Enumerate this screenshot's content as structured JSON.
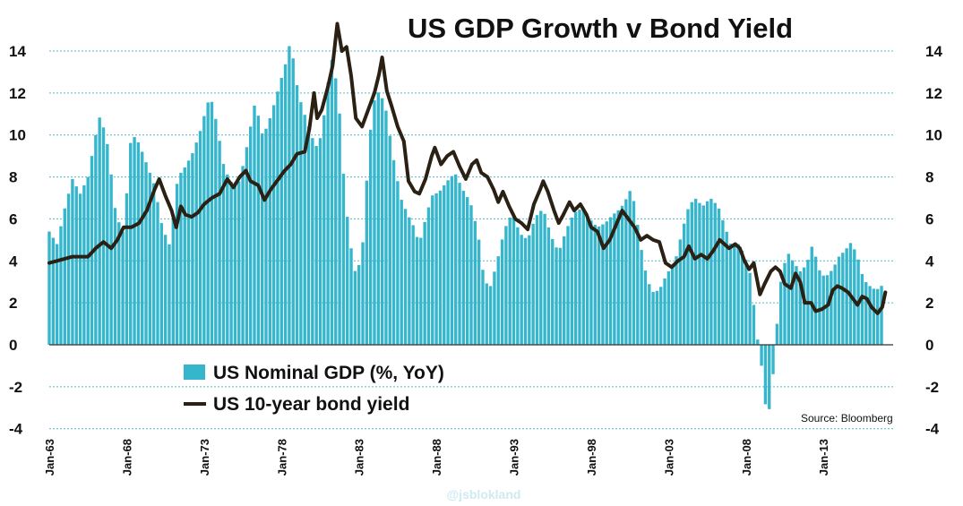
{
  "colors": {
    "bars": "#35b6cc",
    "bar_edge": "#1e9fb6",
    "line": "#2a2013",
    "grid": "#55b8c8",
    "axis": "#333333"
  },
  "chart_data": {
    "type": "bar+line",
    "title": "US GDP Growth v Bond Yield",
    "source": "Source: Bloomberg",
    "watermark": "@jsblokland",
    "x_range": [
      1963.0,
      2017.5
    ],
    "ylim": [
      -4,
      15.3
    ],
    "y_ticks": [
      14,
      12,
      10,
      8,
      6,
      4,
      2,
      0,
      -2,
      -4
    ],
    "y_ticks_left": [
      "14",
      "12",
      "10",
      "8",
      "6",
      "4",
      "2",
      "0",
      "-2",
      "-4"
    ],
    "y_ticks_right": [
      "14",
      "12",
      "10",
      "8",
      "6",
      "4",
      "2",
      "0",
      "-2",
      "-4"
    ],
    "x_ticks": [
      {
        "label": "Jan-63",
        "t": 1963.0
      },
      {
        "label": "Jan-68",
        "t": 1968.0
      },
      {
        "label": "Jan-73",
        "t": 1973.0
      },
      {
        "label": "Jan-78",
        "t": 1978.0
      },
      {
        "label": "Jan-83",
        "t": 1983.0
      },
      {
        "label": "Jan-88",
        "t": 1988.0
      },
      {
        "label": "Jan-93",
        "t": 1993.0
      },
      {
        "label": "Jan-98",
        "t": 1998.0
      },
      {
        "label": "Jan-03",
        "t": 2003.0
      },
      {
        "label": "Jan-08",
        "t": 2008.0
      },
      {
        "label": "Jan-13",
        "t": 2013.0
      }
    ],
    "legend": {
      "position": "bottom-left",
      "entries": [
        "US Nominal GDP (%, YoY)",
        "US 10-year bond yield"
      ]
    },
    "gdp_anchors": [
      [
        1963.0,
        5.4
      ],
      [
        1963.5,
        4.8
      ],
      [
        1964.0,
        6.5
      ],
      [
        1964.5,
        7.9
      ],
      [
        1965.0,
        7.2
      ],
      [
        1965.5,
        8.0
      ],
      [
        1966.0,
        10.0
      ],
      [
        1966.3,
        11.0
      ],
      [
        1966.8,
        9.4
      ],
      [
        1967.3,
        6.2
      ],
      [
        1967.8,
        5.3
      ],
      [
        1968.3,
        10.1
      ],
      [
        1968.8,
        9.6
      ],
      [
        1969.3,
        8.6
      ],
      [
        1969.8,
        7.6
      ],
      [
        1970.3,
        5.6
      ],
      [
        1970.8,
        4.7
      ],
      [
        1971.3,
        8.0
      ],
      [
        1971.8,
        8.5
      ],
      [
        1972.3,
        9.2
      ],
      [
        1972.8,
        10.3
      ],
      [
        1973.1,
        11.2
      ],
      [
        1973.4,
        11.9
      ],
      [
        1973.8,
        10.6
      ],
      [
        1974.3,
        8.4
      ],
      [
        1974.8,
        7.7
      ],
      [
        1975.3,
        7.8
      ],
      [
        1975.8,
        9.6
      ],
      [
        1976.3,
        11.6
      ],
      [
        1976.8,
        9.9
      ],
      [
        1977.3,
        10.9
      ],
      [
        1977.8,
        12.2
      ],
      [
        1978.3,
        13.5
      ],
      [
        1978.6,
        14.6
      ],
      [
        1978.9,
        12.7
      ],
      [
        1979.3,
        11.4
      ],
      [
        1979.8,
        10.3
      ],
      [
        1980.2,
        9.4
      ],
      [
        1980.6,
        10.0
      ],
      [
        1981.0,
        12.5
      ],
      [
        1981.3,
        13.8
      ],
      [
        1981.7,
        11.6
      ],
      [
        1982.1,
        7.0
      ],
      [
        1982.5,
        4.6
      ],
      [
        1982.8,
        3.3
      ],
      [
        1983.2,
        4.3
      ],
      [
        1983.6,
        9.0
      ],
      [
        1983.9,
        11.5
      ],
      [
        1984.3,
        12.1
      ],
      [
        1984.7,
        11.4
      ],
      [
        1985.2,
        9.0
      ],
      [
        1985.7,
        7.0
      ],
      [
        1986.1,
        6.3
      ],
      [
        1986.5,
        5.7
      ],
      [
        1986.9,
        4.8
      ],
      [
        1987.3,
        6.0
      ],
      [
        1987.7,
        7.1
      ],
      [
        1988.2,
        7.3
      ],
      [
        1988.7,
        7.8
      ],
      [
        1989.2,
        8.2
      ],
      [
        1989.7,
        7.4
      ],
      [
        1990.2,
        6.8
      ],
      [
        1990.7,
        5.3
      ],
      [
        1991.1,
        3.0
      ],
      [
        1991.5,
        2.8
      ],
      [
        1991.9,
        3.9
      ],
      [
        1992.4,
        5.5
      ],
      [
        1992.9,
        6.3
      ],
      [
        1993.4,
        5.3
      ],
      [
        1993.9,
        5.0
      ],
      [
        1994.4,
        6.1
      ],
      [
        1994.9,
        6.5
      ],
      [
        1995.4,
        5.2
      ],
      [
        1995.9,
        4.4
      ],
      [
        1996.4,
        5.5
      ],
      [
        1996.9,
        6.3
      ],
      [
        1997.4,
        6.5
      ],
      [
        1997.9,
        6.0
      ],
      [
        1998.4,
        5.6
      ],
      [
        1998.9,
        5.8
      ],
      [
        1999.4,
        6.2
      ],
      [
        1999.9,
        6.5
      ],
      [
        2000.3,
        7.0
      ],
      [
        2000.6,
        7.5
      ],
      [
        2000.9,
        6.2
      ],
      [
        2001.4,
        3.8
      ],
      [
        2001.9,
        2.5
      ],
      [
        2002.4,
        2.6
      ],
      [
        2002.9,
        3.4
      ],
      [
        2003.4,
        3.9
      ],
      [
        2003.9,
        5.5
      ],
      [
        2004.3,
        6.6
      ],
      [
        2004.7,
        7.0
      ],
      [
        2005.2,
        6.6
      ],
      [
        2005.7,
        7.0
      ],
      [
        2006.2,
        6.6
      ],
      [
        2006.7,
        5.5
      ],
      [
        2007.1,
        4.6
      ],
      [
        2007.5,
        4.8
      ],
      [
        2007.9,
        4.3
      ],
      [
        2008.3,
        3.3
      ],
      [
        2008.7,
        0.5
      ],
      [
        2009.0,
        -1.0
      ],
      [
        2009.3,
        -3.2
      ],
      [
        2009.6,
        -3.0
      ],
      [
        2009.9,
        0.2
      ],
      [
        2010.3,
        3.4
      ],
      [
        2010.7,
        4.4
      ],
      [
        2011.1,
        3.9
      ],
      [
        2011.5,
        3.5
      ],
      [
        2011.9,
        3.8
      ],
      [
        2012.3,
        4.8
      ],
      [
        2012.7,
        3.6
      ],
      [
        2013.1,
        3.2
      ],
      [
        2013.6,
        3.6
      ],
      [
        2014.0,
        4.2
      ],
      [
        2014.4,
        4.5
      ],
      [
        2014.8,
        4.9
      ],
      [
        2015.2,
        4.2
      ],
      [
        2015.6,
        3.1
      ],
      [
        2016.0,
        2.8
      ],
      [
        2016.4,
        2.6
      ],
      [
        2016.9,
        2.9
      ]
    ],
    "yield_anchors": [
      [
        1963.0,
        3.9
      ],
      [
        1963.5,
        4.0
      ],
      [
        1964.0,
        4.1
      ],
      [
        1964.5,
        4.2
      ],
      [
        1965.0,
        4.2
      ],
      [
        1965.5,
        4.2
      ],
      [
        1966.0,
        4.6
      ],
      [
        1966.5,
        4.9
      ],
      [
        1967.0,
        4.6
      ],
      [
        1967.4,
        5.0
      ],
      [
        1967.8,
        5.6
      ],
      [
        1968.3,
        5.6
      ],
      [
        1968.8,
        5.8
      ],
      [
        1969.3,
        6.4
      ],
      [
        1969.8,
        7.4
      ],
      [
        1970.1,
        7.9
      ],
      [
        1970.5,
        7.1
      ],
      [
        1970.9,
        6.4
      ],
      [
        1971.2,
        5.6
      ],
      [
        1971.5,
        6.6
      ],
      [
        1971.8,
        6.2
      ],
      [
        1972.2,
        6.1
      ],
      [
        1972.6,
        6.3
      ],
      [
        1973.0,
        6.7
      ],
      [
        1973.5,
        7.0
      ],
      [
        1974.0,
        7.2
      ],
      [
        1974.5,
        7.9
      ],
      [
        1974.9,
        7.5
      ],
      [
        1975.3,
        8.0
      ],
      [
        1975.7,
        8.3
      ],
      [
        1976.0,
        7.8
      ],
      [
        1976.5,
        7.6
      ],
      [
        1976.9,
        6.9
      ],
      [
        1977.3,
        7.4
      ],
      [
        1977.8,
        7.9
      ],
      [
        1978.2,
        8.3
      ],
      [
        1978.6,
        8.6
      ],
      [
        1979.0,
        9.1
      ],
      [
        1979.5,
        9.2
      ],
      [
        1979.8,
        10.3
      ],
      [
        1980.1,
        12.0
      ],
      [
        1980.3,
        10.8
      ],
      [
        1980.6,
        11.2
      ],
      [
        1981.0,
        12.3
      ],
      [
        1981.3,
        13.3
      ],
      [
        1981.6,
        15.3
      ],
      [
        1981.9,
        14.0
      ],
      [
        1982.2,
        14.2
      ],
      [
        1982.5,
        12.8
      ],
      [
        1982.8,
        10.8
      ],
      [
        1983.2,
        10.4
      ],
      [
        1983.6,
        11.2
      ],
      [
        1984.0,
        12.0
      ],
      [
        1984.3,
        12.9
      ],
      [
        1984.5,
        13.7
      ],
      [
        1984.8,
        12.1
      ],
      [
        1985.1,
        11.4
      ],
      [
        1985.5,
        10.4
      ],
      [
        1985.9,
        9.7
      ],
      [
        1986.2,
        7.8
      ],
      [
        1986.6,
        7.3
      ],
      [
        1986.9,
        7.2
      ],
      [
        1987.3,
        7.9
      ],
      [
        1987.7,
        9.0
      ],
      [
        1987.9,
        9.4
      ],
      [
        1988.3,
        8.6
      ],
      [
        1988.7,
        9.0
      ],
      [
        1989.1,
        9.2
      ],
      [
        1989.5,
        8.5
      ],
      [
        1989.9,
        7.9
      ],
      [
        1990.3,
        8.6
      ],
      [
        1990.6,
        8.8
      ],
      [
        1990.9,
        8.2
      ],
      [
        1991.3,
        8.0
      ],
      [
        1991.7,
        7.4
      ],
      [
        1992.0,
        6.8
      ],
      [
        1992.3,
        7.3
      ],
      [
        1992.7,
        6.6
      ],
      [
        1993.1,
        6.0
      ],
      [
        1993.5,
        5.8
      ],
      [
        1993.9,
        5.5
      ],
      [
        1994.3,
        6.7
      ],
      [
        1994.7,
        7.4
      ],
      [
        1994.9,
        7.8
      ],
      [
        1995.2,
        7.3
      ],
      [
        1995.6,
        6.4
      ],
      [
        1995.9,
        5.8
      ],
      [
        1996.2,
        6.2
      ],
      [
        1996.6,
        6.8
      ],
      [
        1996.9,
        6.4
      ],
      [
        1997.3,
        6.7
      ],
      [
        1997.7,
        6.2
      ],
      [
        1998.0,
        5.6
      ],
      [
        1998.4,
        5.4
      ],
      [
        1998.8,
        4.6
      ],
      [
        1999.2,
        5.0
      ],
      [
        1999.6,
        5.7
      ],
      [
        2000.0,
        6.4
      ],
      [
        2000.4,
        6.0
      ],
      [
        2000.8,
        5.6
      ],
      [
        2001.2,
        5.0
      ],
      [
        2001.6,
        5.2
      ],
      [
        2002.0,
        5.0
      ],
      [
        2002.4,
        4.9
      ],
      [
        2002.8,
        3.9
      ],
      [
        2003.2,
        3.7
      ],
      [
        2003.6,
        4.0
      ],
      [
        2004.0,
        4.2
      ],
      [
        2004.3,
        4.7
      ],
      [
        2004.7,
        4.1
      ],
      [
        2005.1,
        4.3
      ],
      [
        2005.5,
        4.1
      ],
      [
        2005.9,
        4.5
      ],
      [
        2006.3,
        5.0
      ],
      [
        2006.6,
        4.8
      ],
      [
        2006.9,
        4.6
      ],
      [
        2007.3,
        4.8
      ],
      [
        2007.6,
        4.6
      ],
      [
        2007.9,
        4.0
      ],
      [
        2008.2,
        3.6
      ],
      [
        2008.5,
        3.9
      ],
      [
        2008.9,
        2.4
      ],
      [
        2009.2,
        2.9
      ],
      [
        2009.6,
        3.5
      ],
      [
        2009.9,
        3.7
      ],
      [
        2010.2,
        3.5
      ],
      [
        2010.5,
        2.9
      ],
      [
        2010.9,
        2.7
      ],
      [
        2011.2,
        3.4
      ],
      [
        2011.5,
        3.0
      ],
      [
        2011.8,
        2.0
      ],
      [
        2012.2,
        2.0
      ],
      [
        2012.5,
        1.6
      ],
      [
        2012.9,
        1.7
      ],
      [
        2013.3,
        1.9
      ],
      [
        2013.6,
        2.6
      ],
      [
        2013.9,
        2.8
      ],
      [
        2014.2,
        2.7
      ],
      [
        2014.6,
        2.5
      ],
      [
        2014.9,
        2.2
      ],
      [
        2015.2,
        1.9
      ],
      [
        2015.5,
        2.3
      ],
      [
        2015.8,
        2.2
      ],
      [
        2016.1,
        1.8
      ],
      [
        2016.5,
        1.5
      ],
      [
        2016.8,
        1.8
      ],
      [
        2017.0,
        2.5
      ]
    ]
  }
}
